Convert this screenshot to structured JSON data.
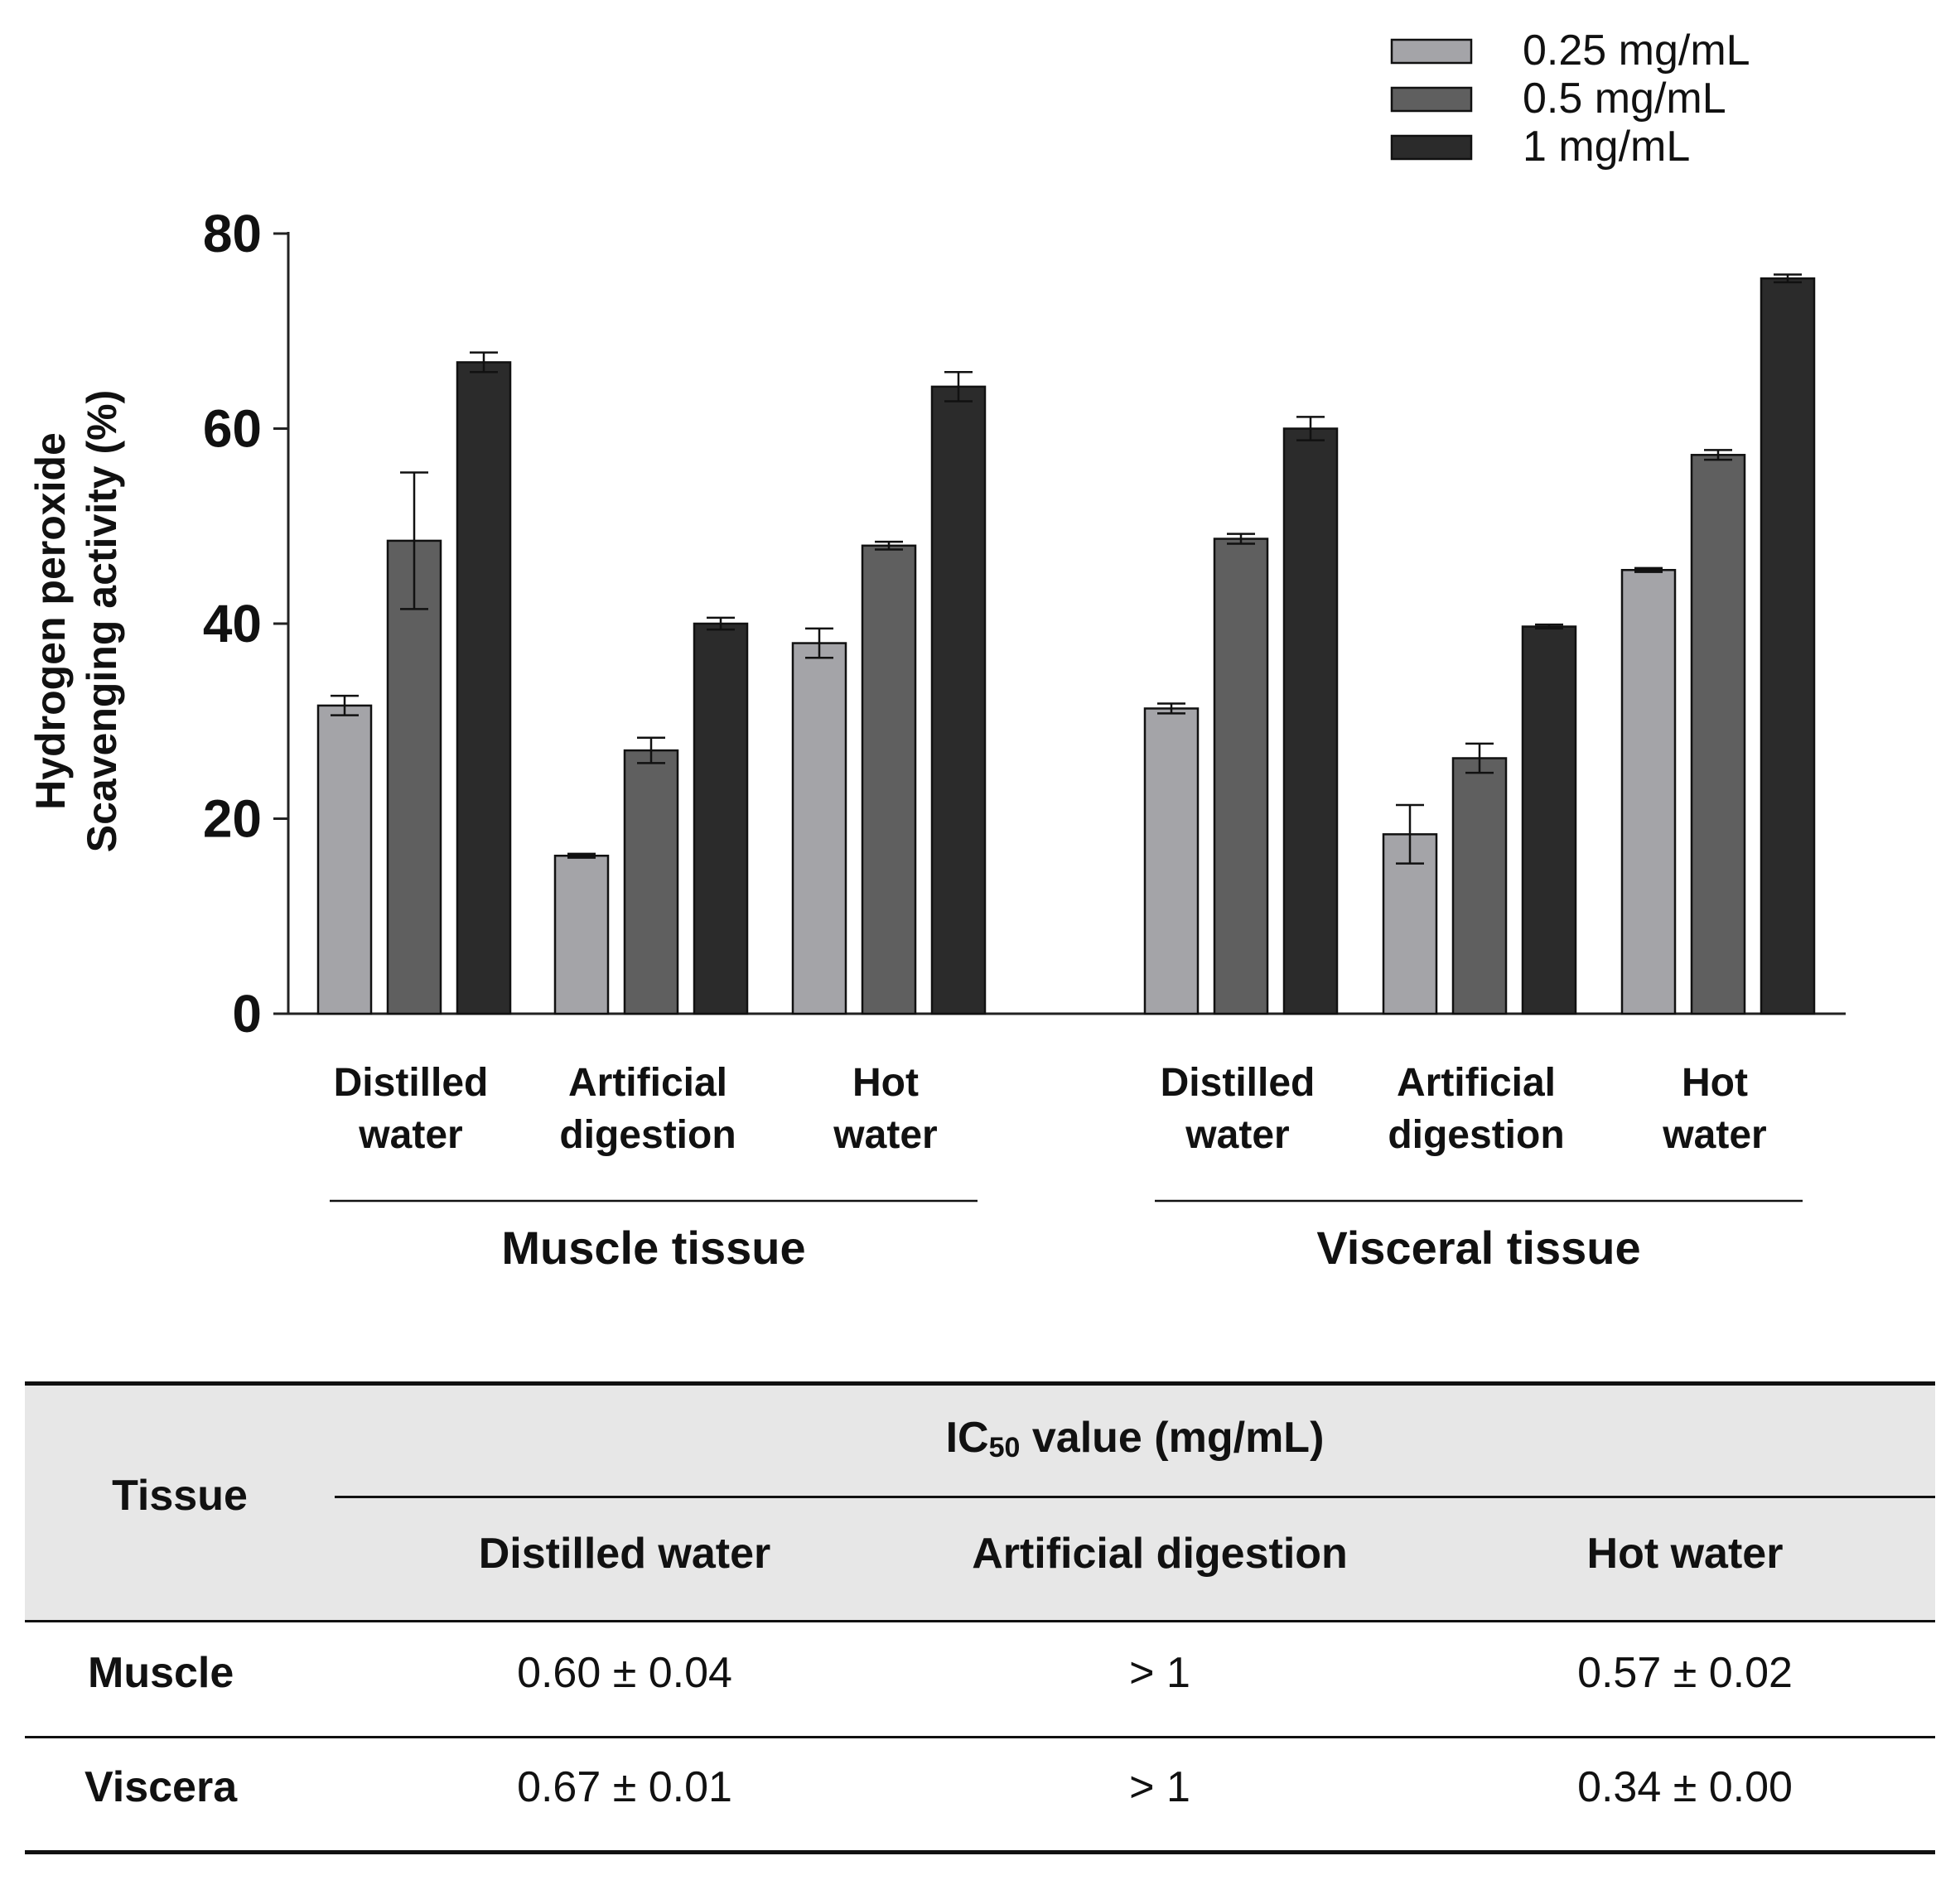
{
  "chart_data": {
    "type": "bar",
    "ylabel": [
      "Hydrogen peroxide",
      "Scavenging activity (%)"
    ],
    "ylim": [
      0,
      80
    ],
    "yticks": [
      0,
      20,
      40,
      60,
      80
    ],
    "legend_position": "top-right",
    "series": [
      {
        "name": "0.25 mg/mL",
        "color": "#a4a4a8"
      },
      {
        "name": "0.5 mg/mL",
        "color": "#5f5f5f"
      },
      {
        "name": "1 mg/mL",
        "color": "#2b2b2b"
      }
    ],
    "groups": [
      {
        "label": "Muscle tissue",
        "categories": [
          {
            "label": [
              "Distilled",
              "water"
            ],
            "values": [
              31.6,
              48.5,
              66.8
            ],
            "errors": [
              1.0,
              7.0,
              1.0
            ]
          },
          {
            "label": [
              "Artificial",
              "digestion"
            ],
            "values": [
              16.2,
              27.0,
              40.0
            ],
            "errors": [
              0.2,
              1.3,
              0.6
            ]
          },
          {
            "label": [
              "Hot",
              "water"
            ],
            "values": [
              38.0,
              48.0,
              64.3
            ],
            "errors": [
              1.5,
              0.4,
              1.5
            ]
          }
        ]
      },
      {
        "label": "Visceral tissue",
        "categories": [
          {
            "label": [
              "Distilled",
              "water"
            ],
            "values": [
              31.3,
              48.7,
              60.0
            ],
            "errors": [
              0.5,
              0.5,
              1.2
            ]
          },
          {
            "label": [
              "Artificial",
              "digestion"
            ],
            "values": [
              18.4,
              26.2,
              39.7
            ],
            "errors": [
              3.0,
              1.5,
              0.2
            ]
          },
          {
            "label": [
              "Hot",
              "water"
            ],
            "values": [
              45.5,
              57.3,
              75.4
            ],
            "errors": [
              0.2,
              0.5,
              0.4
            ]
          }
        ]
      }
    ]
  },
  "table": {
    "header_tissue": "Tissue",
    "header_ic50_prefix": "IC",
    "header_ic50_sub": "50",
    "header_ic50_suffix": " value (mg/mL)",
    "columns": [
      "Distilled water",
      "Artificial digestion",
      "Hot water"
    ],
    "rows": [
      {
        "tissue": "Muscle",
        "values": [
          "0.60 ± 0.04",
          "> 1",
          "0.57 ± 0.02"
        ]
      },
      {
        "tissue": "Viscera",
        "values": [
          "0.67 ± 0.01",
          "> 1",
          "0.34 ± 0.00"
        ]
      }
    ]
  }
}
